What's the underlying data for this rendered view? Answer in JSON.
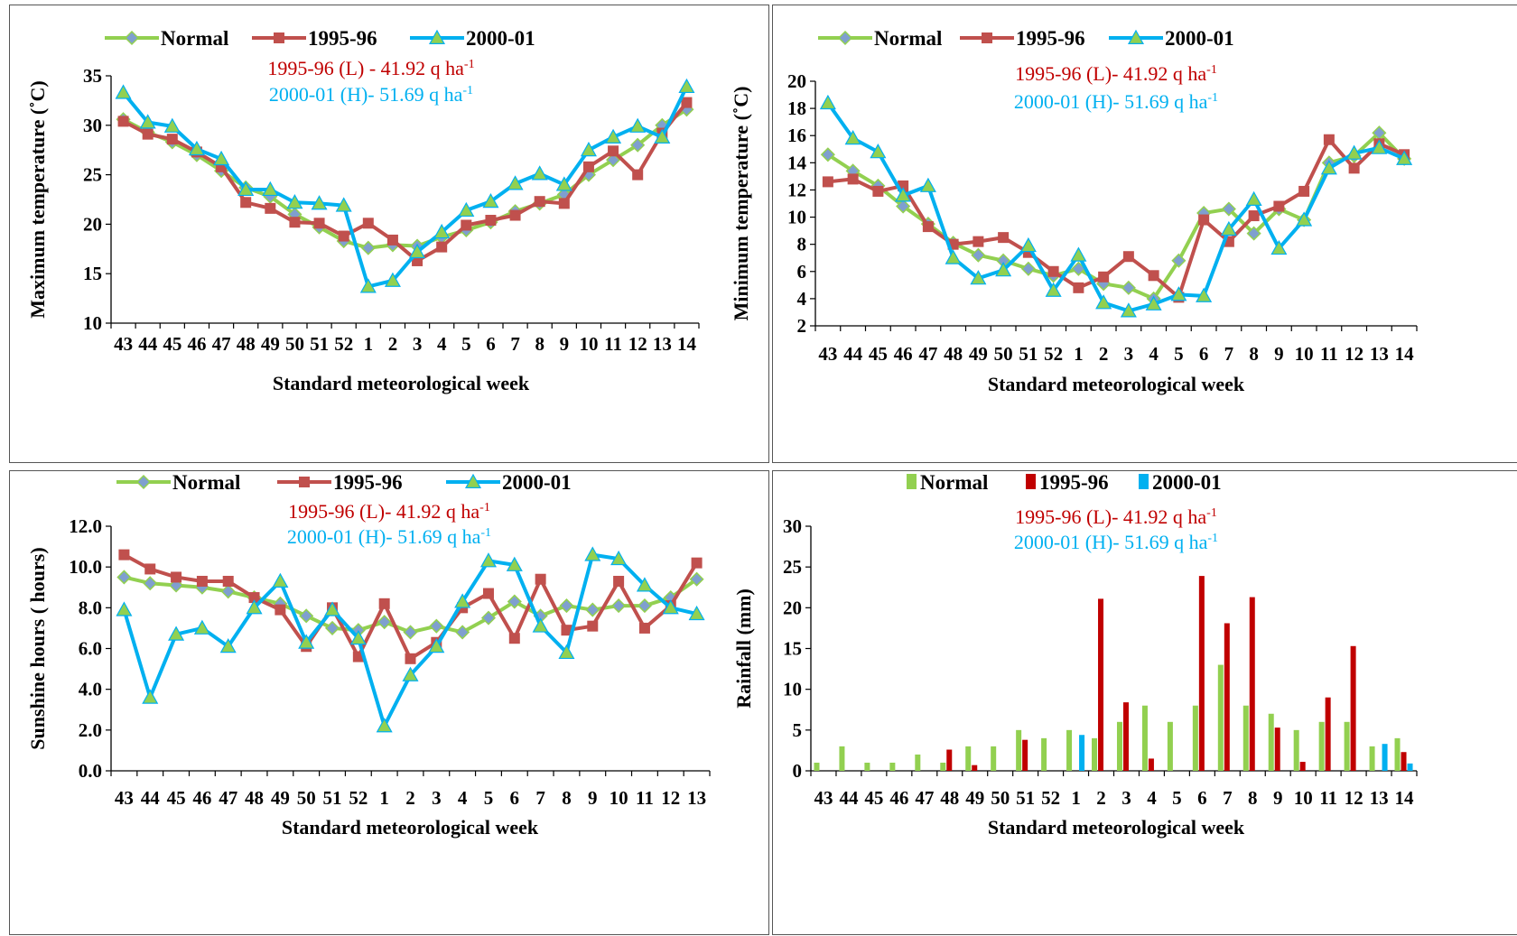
{
  "colors": {
    "normal": "#92D050",
    "normal_marker": "#7F9FCF",
    "y9596": "#C0504D",
    "y9596_bar": "#C00000",
    "y0001": "#00B0F0",
    "ann_red": "#C00000",
    "ann_blue": "#00B0F0"
  },
  "chart_data": [
    {
      "type": "line",
      "xlabel": "Standard meteorological week",
      "ylabel": "Maximum temperature (˚C)",
      "ylim": [
        10,
        35
      ],
      "yticks": [
        "10",
        "15",
        "20",
        "25",
        "30",
        "35"
      ],
      "categories": [
        "43",
        "44",
        "45",
        "46",
        "47",
        "48",
        "49",
        "50",
        "51",
        "52",
        "1",
        "2",
        "3",
        "4",
        "5",
        "6",
        "7",
        "8",
        "9",
        "10",
        "11",
        "12",
        "13",
        "14"
      ],
      "legend": [
        "Normal",
        "1995-96",
        "2000-01"
      ],
      "annotations": [
        {
          "text": "1995-96 (L) - 41.92 q ha",
          "sup": "-1"
        },
        {
          "text": "2000-01 (H)- 51.69 q ha",
          "sup": "-1"
        }
      ],
      "series": [
        {
          "name": "Normal",
          "values": [
            30.6,
            29.3,
            28.3,
            27.0,
            25.4,
            23.7,
            22.8,
            21.0,
            19.7,
            18.3,
            17.6,
            17.9,
            17.8,
            18.7,
            19.4,
            20.2,
            21.3,
            22.1,
            23.0,
            25.0,
            26.5,
            28.0,
            30.0,
            31.6
          ]
        },
        {
          "name": "1995-96",
          "values": [
            30.4,
            29.1,
            28.6,
            27.3,
            25.8,
            22.2,
            21.6,
            20.2,
            20.1,
            18.8,
            20.1,
            18.4,
            16.3,
            17.7,
            19.9,
            20.4,
            20.9,
            22.3,
            22.1,
            25.8,
            27.4,
            25.0,
            29.2,
            32.3
          ]
        },
        {
          "name": "2000-01",
          "values": [
            33.3,
            30.3,
            29.9,
            27.6,
            26.6,
            23.5,
            23.5,
            22.2,
            22.1,
            21.9,
            13.7,
            14.3,
            17.2,
            19.2,
            21.4,
            22.3,
            24.1,
            25.1,
            24.0,
            27.5,
            28.8,
            29.9,
            28.8,
            33.9
          ]
        }
      ]
    },
    {
      "type": "line",
      "xlabel": "Standard meteorological week",
      "ylabel": "Minimum temperature (˚C)",
      "ylim": [
        2,
        20
      ],
      "yticks": [
        "2",
        "4",
        "6",
        "8",
        "10",
        "12",
        "14",
        "16",
        "18",
        "20"
      ],
      "categories": [
        "43",
        "44",
        "45",
        "46",
        "47",
        "48",
        "49",
        "50",
        "51",
        "52",
        "1",
        "2",
        "3",
        "4",
        "5",
        "6",
        "7",
        "8",
        "9",
        "10",
        "11",
        "12",
        "13",
        "14"
      ],
      "legend": [
        "Normal",
        "1995-96",
        "2000-01"
      ],
      "annotations": [
        {
          "text": "1995-96 (L)- 41.92 q ha",
          "sup": "-1"
        },
        {
          "text": "2000-01 (H)- 51.69 q ha",
          "sup": "-1"
        }
      ],
      "series": [
        {
          "name": "Normal",
          "values": [
            14.6,
            13.4,
            12.3,
            10.8,
            9.5,
            8.1,
            7.2,
            6.8,
            6.2,
            5.7,
            6.2,
            5.1,
            4.8,
            4.0,
            6.8,
            10.3,
            10.6,
            8.8,
            10.6,
            9.8,
            14.0,
            14.5,
            16.2,
            14.3
          ]
        },
        {
          "name": "1995-96",
          "values": [
            12.6,
            12.8,
            11.9,
            12.3,
            9.3,
            8.0,
            8.2,
            8.5,
            7.4,
            6.0,
            4.8,
            5.6,
            7.1,
            5.7,
            4.1,
            9.8,
            8.2,
            10.1,
            10.8,
            11.9,
            15.7,
            13.6,
            15.4,
            14.6
          ]
        },
        {
          "name": "2000-01",
          "values": [
            18.4,
            15.8,
            14.8,
            11.6,
            12.3,
            7.0,
            5.5,
            6.1,
            7.9,
            4.6,
            7.2,
            3.7,
            3.1,
            3.6,
            4.3,
            4.2,
            9.1,
            11.3,
            7.7,
            9.8,
            13.6,
            14.7,
            15.1,
            14.3
          ]
        }
      ]
    },
    {
      "type": "line",
      "xlabel": "Standard meteorological week",
      "ylabel": "Sunshine hours ( hours)",
      "ylim": [
        0,
        12
      ],
      "yticks": [
        "0.0",
        "2.0",
        "4.0",
        "6.0",
        "8.0",
        "10.0",
        "12.0"
      ],
      "categories": [
        "43",
        "44",
        "45",
        "46",
        "47",
        "48",
        "49",
        "50",
        "51",
        "52",
        "1",
        "2",
        "3",
        "4",
        "5",
        "6",
        "7",
        "8",
        "9",
        "10",
        "11",
        "12",
        "13"
      ],
      "legend": [
        "Normal",
        "1995-96",
        "2000-01"
      ],
      "annotations": [
        {
          "text": "1995-96 (L)- 41.92 q ha",
          "sup": "-1"
        },
        {
          "text": "2000-01 (H)- 51.69 q ha",
          "sup": "-1"
        }
      ],
      "series": [
        {
          "name": "Normal",
          "values": [
            9.5,
            9.2,
            9.1,
            9.0,
            8.8,
            8.5,
            8.2,
            7.6,
            7.0,
            6.9,
            7.3,
            6.8,
            7.1,
            6.8,
            7.5,
            8.3,
            7.6,
            8.1,
            7.9,
            8.1,
            8.1,
            8.5,
            9.4
          ]
        },
        {
          "name": "1995-96",
          "values": [
            10.6,
            9.9,
            9.5,
            9.3,
            9.3,
            8.5,
            7.9,
            6.1,
            8.0,
            5.6,
            8.2,
            5.5,
            6.3,
            8.0,
            8.7,
            6.5,
            9.4,
            6.9,
            7.1,
            9.3,
            7.0,
            8.1,
            10.2
          ]
        },
        {
          "name": "2000-01",
          "values": [
            7.9,
            3.6,
            6.7,
            7.0,
            6.1,
            8.0,
            9.3,
            6.3,
            7.9,
            6.5,
            2.2,
            4.7,
            6.1,
            8.3,
            10.3,
            10.1,
            7.1,
            5.8,
            10.6,
            10.4,
            9.1,
            8.0,
            7.7
          ]
        }
      ]
    },
    {
      "type": "bar",
      "xlabel": "Standard meteorological week",
      "ylabel": "Rainfall (mm)",
      "ylim": [
        0,
        30
      ],
      "yticks": [
        "0",
        "5",
        "10",
        "15",
        "20",
        "25",
        "30"
      ],
      "categories": [
        "43",
        "44",
        "45",
        "46",
        "47",
        "48",
        "49",
        "50",
        "51",
        "52",
        "1",
        "2",
        "3",
        "4",
        "5",
        "6",
        "7",
        "8",
        "9",
        "10",
        "11",
        "12",
        "13",
        "14"
      ],
      "legend": [
        "Normal",
        "1995-96",
        "2000-01"
      ],
      "annotations": [
        {
          "text": "1995-96 (L)- 41.92 q ha",
          "sup": "-1"
        },
        {
          "text": "2000-01 (H)- 51.69 q ha",
          "sup": "-1"
        }
      ],
      "series": [
        {
          "name": "Normal",
          "values": [
            1,
            3,
            1,
            1,
            2,
            1,
            3,
            3,
            5,
            4,
            5,
            4,
            6,
            8,
            6,
            8,
            13,
            8,
            7,
            5,
            6,
            6,
            3,
            4
          ]
        },
        {
          "name": "1995-96",
          "values": [
            0,
            0,
            0,
            0,
            0,
            2.6,
            0.7,
            0,
            3.8,
            0,
            0,
            21.1,
            8.4,
            1.5,
            0,
            23.9,
            18.1,
            21.3,
            5.3,
            1.1,
            9.0,
            15.3,
            0,
            2.3
          ]
        },
        {
          "name": "2000-01",
          "values": [
            0,
            0,
            0,
            0,
            0,
            0,
            0,
            0,
            0,
            0,
            4.4,
            0,
            0,
            0,
            0,
            0,
            0,
            0,
            0,
            0,
            0,
            0,
            3.3,
            0.9
          ]
        }
      ]
    }
  ]
}
